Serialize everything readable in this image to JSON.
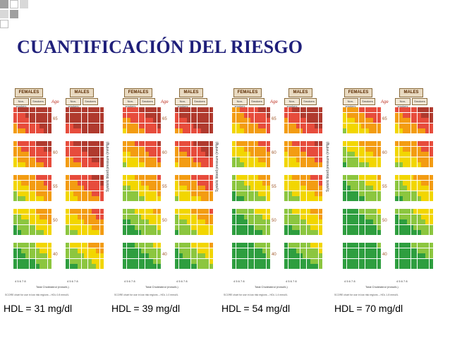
{
  "slide": {
    "title": "CUANTIFICACIÓN DEL RIESGO",
    "colors": {
      "title": "#1f1f7a",
      "deco_dark": "#a0a0a0",
      "deco_light": "#d8d8d8"
    }
  },
  "charts": [
    {
      "hdl_label": "HDL = 31 mg/dl",
      "headers": {
        "females": "FEMALES",
        "males": "MALES",
        "nonsmokers": "Non-smokers",
        "smokers": "Smokers",
        "age": "Age"
      },
      "ages": [
        "65",
        "60",
        "55",
        "50",
        "40"
      ],
      "axis_y": "Systolic blood pressure (mmHg)",
      "axis_x": "Total Cholesterol (mmol/L)",
      "footer": "SCORE chart for use in low risk regions – HDL 0.8 mmol/L",
      "cholesterol_ticks": "4 5 6 7 8"
    },
    {
      "hdl_label": "HDL = 39 mg/dl",
      "headers": {
        "females": "FEMALES",
        "males": "MALES",
        "nonsmokers": "Non-smokers",
        "smokers": "Smokers",
        "age": "Age"
      },
      "ages": [
        "65",
        "60",
        "55",
        "50",
        "40"
      ],
      "axis_y": "Systolic blood pressure (mmHg)",
      "axis_x": "Total Cholesterol (mmol/L)",
      "footer": "SCORE chart for use in low risk regions – HDL 1.0 mmol/L",
      "cholesterol_ticks": "4 5 6 7 8"
    },
    {
      "hdl_label": "HDL = 54 mg/dl",
      "headers": {
        "females": "FEMALES",
        "males": "MALES",
        "nonsmokers": "Non-smokers",
        "smokers": "Smokers",
        "age": "Age"
      },
      "ages": [
        "65",
        "60",
        "55",
        "50",
        "40"
      ],
      "axis_y": "Systolic blood pressure (mmHg)",
      "axis_x": "Total Cholesterol (mmol/L)",
      "footer": "SCORE chart for use in low risk regions – HDL 1.4 mmol/L",
      "cholesterol_ticks": "4 5 6 7 8"
    },
    {
      "hdl_label": "HDL = 70 mg/dl",
      "headers": {
        "females": "FEMALES",
        "males": "MALES",
        "nonsmokers": "Non-smokers",
        "smokers": "Smokers",
        "age": "Age"
      },
      "ages": [
        "65",
        "60",
        "55",
        "50",
        "40"
      ],
      "axis_y": "Systolic blood pressure (mmHg)",
      "axis_x": "Total Cholesterol (mmol/L)",
      "footer": "SCORE chart for use in low risk regions – HDL 1.8 mmol/L",
      "cholesterol_ticks": "4 5 6 7 8"
    }
  ]
}
